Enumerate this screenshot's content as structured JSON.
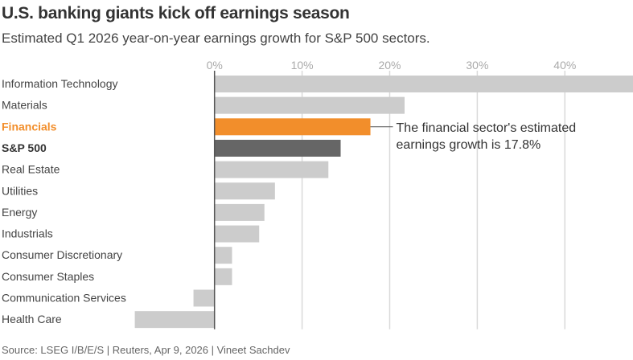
{
  "chart_data": {
    "type": "bar",
    "orientation": "horizontal",
    "title": "U.S. banking giants kick off earnings season",
    "subtitle": "Estimated Q1 2026 year-on-year earnings growth for S&P 500 sectors.",
    "categories": [
      "Information Technology",
      "Materials",
      "Financials",
      "S&P 500",
      "Real Estate",
      "Utilities",
      "Energy",
      "Industrials",
      "Consumer Discretionary",
      "Consumer Staples",
      "Communication Services",
      "Health Care"
    ],
    "values": [
      47.8,
      21.7,
      17.8,
      14.4,
      13.0,
      6.9,
      5.7,
      5.1,
      2.0,
      2.0,
      -2.4,
      -9.1
    ],
    "unit": "%",
    "xlim": [
      -9.2,
      47.8
    ],
    "xticks": [
      0,
      10,
      20,
      30,
      40
    ],
    "xtick_labels": [
      "0%",
      "10%",
      "20%",
      "30%",
      "40%"
    ],
    "grid": true,
    "colors": {
      "default": "#cccccc",
      "highlight": "#f28e2b",
      "benchmark": "#666666",
      "highlight_label": "#f28e2b",
      "benchmark_label": "#333333"
    },
    "highlight_category": "Financials",
    "benchmark_category": "S&P 500",
    "annotation": [
      "The financial sector's estimated",
      "earnings growth is 17.8%"
    ]
  },
  "source": "Source: LSEG I/B/E/S | Reuters, Apr 9, 2026  | Vineet Sachdev"
}
